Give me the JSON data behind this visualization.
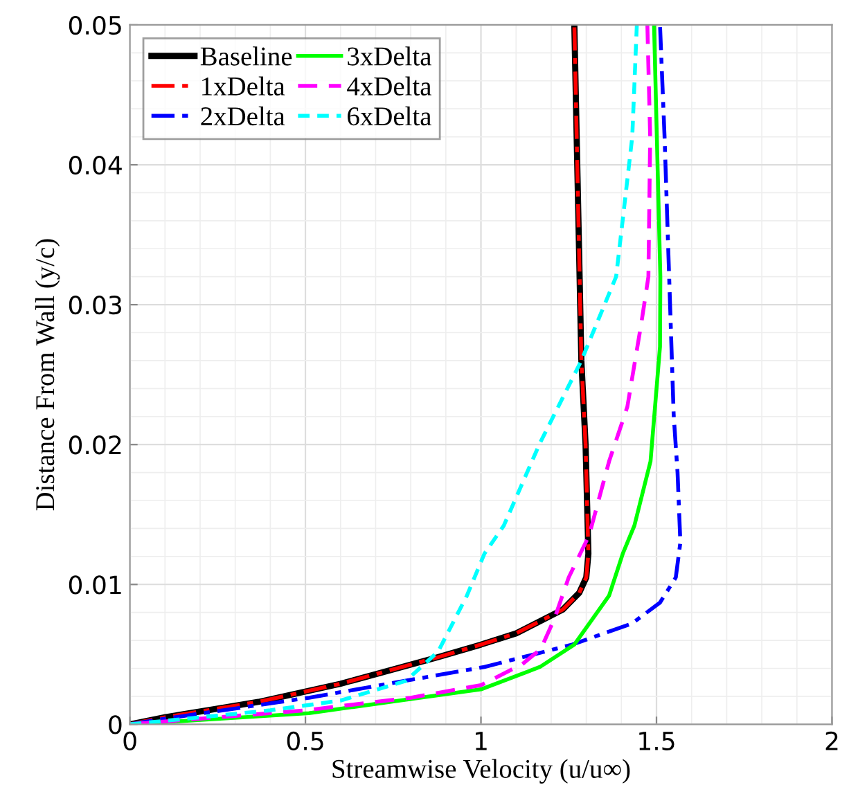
{
  "chart_data": {
    "type": "line",
    "xlabel": "Streamwise Velocity (u/u∞)",
    "ylabel": "Distance From Wall (y/c)",
    "xlim": [
      0,
      2
    ],
    "xticks": [
      0,
      0.5,
      1,
      1.5,
      2
    ],
    "ylim": [
      0,
      0.05
    ],
    "yticks": [
      0,
      0.01,
      0.02,
      0.03,
      0.04,
      0.05
    ],
    "grid": true,
    "legend": "top left",
    "series": [
      {
        "name": "Baseline",
        "color": "#000000",
        "line_style": "solid",
        "x": [
          0,
          0.1,
          0.366,
          0.6,
          0.878,
          1.0,
          1.1,
          1.233,
          1.28,
          1.3,
          1.306,
          1.298,
          1.286,
          1.266
        ],
        "values": [
          0,
          0.0005,
          0.0016,
          0.0029,
          0.0048,
          0.0057,
          0.0065,
          0.0082,
          0.0094,
          0.0105,
          0.0122,
          0.02,
          0.026,
          0.05
        ]
      },
      {
        "name": "1xDelta",
        "color": "#ff0000",
        "line_style": "dashdot",
        "x": [
          0,
          0.1,
          0.366,
          0.6,
          0.878,
          1.0,
          1.1,
          1.233,
          1.28,
          1.3,
          1.306,
          1.298,
          1.286,
          1.266
        ],
        "values": [
          0,
          0.0005,
          0.0016,
          0.0029,
          0.0048,
          0.0057,
          0.0065,
          0.0082,
          0.0094,
          0.0105,
          0.0122,
          0.02,
          0.026,
          0.05
        ]
      },
      {
        "name": "2xDelta",
        "color": "#0000ff",
        "line_style": "dashdot",
        "x": [
          0,
          0.1,
          0.51,
          1.01,
          1.26,
          1.43,
          1.51,
          1.555,
          1.568,
          1.56,
          1.549,
          1.523,
          1.51
        ],
        "values": [
          0,
          0.0004,
          0.0019,
          0.0041,
          0.0057,
          0.0072,
          0.0087,
          0.0105,
          0.013,
          0.018,
          0.0221,
          0.042,
          0.05
        ]
      },
      {
        "name": "3xDelta",
        "color": "#00ff00",
        "line_style": "solid",
        "x": [
          0,
          0.51,
          1.0,
          1.168,
          1.266,
          1.365,
          1.404,
          1.437,
          1.483,
          1.51,
          1.511,
          1.493
        ],
        "values": [
          0,
          0.0008,
          0.0025,
          0.0041,
          0.0057,
          0.0092,
          0.0122,
          0.0142,
          0.0188,
          0.027,
          0.032,
          0.05
        ]
      },
      {
        "name": "4xDelta",
        "color": "#ff00ff",
        "line_style": "dashed",
        "x": [
          0,
          0.5,
          0.8,
          1.0,
          1.118,
          1.171,
          1.21,
          1.25,
          1.308,
          1.365,
          1.417,
          1.457,
          1.477,
          1.482,
          1.474
        ],
        "values": [
          0,
          0.001,
          0.0019,
          0.0028,
          0.0043,
          0.0054,
          0.0076,
          0.0105,
          0.0135,
          0.0188,
          0.0227,
          0.0287,
          0.032,
          0.042,
          0.05
        ]
      },
      {
        "name": "6xDelta",
        "color": "#00ffff",
        "line_style": "dotted",
        "x": [
          0,
          0.4,
          0.6,
          0.786,
          0.878,
          0.96,
          1.01,
          1.065,
          1.168,
          1.286,
          1.385,
          1.404,
          1.431,
          1.444
        ],
        "values": [
          0,
          0.001,
          0.0017,
          0.0031,
          0.0052,
          0.0092,
          0.0122,
          0.0142,
          0.0201,
          0.026,
          0.032,
          0.0361,
          0.042,
          0.05
        ]
      }
    ]
  }
}
